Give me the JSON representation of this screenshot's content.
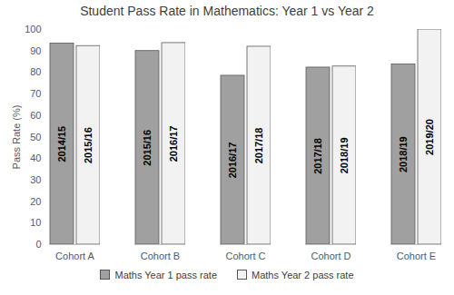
{
  "chart_data": {
    "type": "bar",
    "title": "Student Pass Rate in Mathematics: Year 1 vs Year 2",
    "y_label": "Pass Rate (%)",
    "categories": [
      "Cohort A",
      "Cohort B",
      "Cohort C",
      "Cohort D",
      "Cohort E"
    ],
    "series": [
      {
        "name": "Maths Year 1 pass rate",
        "color": "#a0a0a0",
        "values": [
          93.5,
          90,
          78.5,
          82.3,
          83.8
        ],
        "bar_labels": [
          "2014/15",
          "2015/16",
          "2016/17",
          "2017/18",
          "2018/19"
        ]
      },
      {
        "name": "Maths Year 2 pass rate",
        "color": "#f2f2f2",
        "values": [
          92.3,
          93.7,
          92,
          82.8,
          100
        ],
        "bar_labels": [
          "2015/16",
          "2016/17",
          "2017/18",
          "2018/19",
          "2019/20"
        ]
      }
    ],
    "ylim": [
      0,
      100
    ],
    "yticks": [
      0,
      10,
      20,
      30,
      40,
      50,
      60,
      70,
      80,
      90,
      100
    ],
    "grid": false,
    "legend": "bottom"
  }
}
